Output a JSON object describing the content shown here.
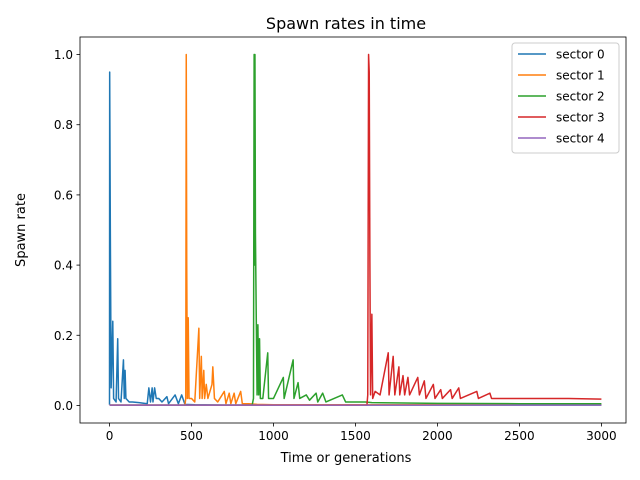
{
  "chart_data": {
    "type": "line",
    "title": "Spawn rates in time",
    "xlabel": "Time or generations",
    "ylabel": "Spawn rate",
    "xlim": [
      -180,
      3150
    ],
    "ylim": [
      -0.05,
      1.05
    ],
    "xticks": [
      0,
      500,
      1000,
      1500,
      2000,
      2500,
      3000
    ],
    "xtick_labels": [
      "0",
      "500",
      "1000",
      "1500",
      "2000",
      "2500",
      "3000"
    ],
    "yticks": [
      0.0,
      0.2,
      0.4,
      0.6,
      0.8,
      1.0
    ],
    "ytick_labels": [
      "0.0",
      "0.2",
      "0.4",
      "0.6",
      "0.8",
      "1.0"
    ],
    "grid": false,
    "legend_position": "top-right",
    "series": [
      {
        "name": "sector 0",
        "color": "#1f77b4",
        "points": [
          [
            0,
            0.002
          ],
          [
            1,
            0.95
          ],
          [
            5,
            0.5
          ],
          [
            10,
            0.05
          ],
          [
            20,
            0.24
          ],
          [
            25,
            0.02
          ],
          [
            40,
            0.01
          ],
          [
            50,
            0.19
          ],
          [
            55,
            0.02
          ],
          [
            70,
            0.01
          ],
          [
            85,
            0.13
          ],
          [
            90,
            0.02
          ],
          [
            95,
            0.1
          ],
          [
            100,
            0.02
          ],
          [
            120,
            0.01
          ],
          [
            140,
            0.01
          ],
          [
            180,
            0.008
          ],
          [
            230,
            0.005
          ],
          [
            240,
            0.05
          ],
          [
            250,
            0.01
          ],
          [
            260,
            0.05
          ],
          [
            265,
            0.01
          ],
          [
            275,
            0.05
          ],
          [
            285,
            0.02
          ],
          [
            300,
            0.02
          ],
          [
            320,
            0.01
          ],
          [
            350,
            0.025
          ],
          [
            360,
            0.005
          ],
          [
            400,
            0.03
          ],
          [
            420,
            0.005
          ],
          [
            440,
            0.03
          ],
          [
            460,
            0.003
          ],
          [
            520,
            0.002
          ],
          [
            700,
            0.001
          ],
          [
            1000,
            0.001
          ],
          [
            3000,
            0.001
          ]
        ]
      },
      {
        "name": "sector 1",
        "color": "#ff7f0e",
        "points": [
          [
            0,
            0.001
          ],
          [
            460,
            0.001
          ],
          [
            465,
            0.02
          ],
          [
            468,
            1.0
          ],
          [
            471,
            0.4
          ],
          [
            475,
            0.02
          ],
          [
            480,
            0.25
          ],
          [
            485,
            0.02
          ],
          [
            500,
            0.02
          ],
          [
            520,
            0.01
          ],
          [
            545,
            0.22
          ],
          [
            550,
            0.02
          ],
          [
            560,
            0.14
          ],
          [
            565,
            0.02
          ],
          [
            575,
            0.1
          ],
          [
            580,
            0.02
          ],
          [
            590,
            0.06
          ],
          [
            600,
            0.02
          ],
          [
            625,
            0.06
          ],
          [
            630,
            0.11
          ],
          [
            640,
            0.02
          ],
          [
            660,
            0.01
          ],
          [
            700,
            0.04
          ],
          [
            710,
            0.005
          ],
          [
            730,
            0.035
          ],
          [
            740,
            0.005
          ],
          [
            760,
            0.035
          ],
          [
            770,
            0.005
          ],
          [
            800,
            0.04
          ],
          [
            810,
            0.005
          ],
          [
            850,
            0.005
          ],
          [
            900,
            0.003
          ],
          [
            1000,
            0.002
          ],
          [
            3000,
            0.002
          ]
        ]
      },
      {
        "name": "sector 2",
        "color": "#2ca02c",
        "points": [
          [
            0,
            0.001
          ],
          [
            870,
            0.001
          ],
          [
            878,
            0.02
          ],
          [
            882,
            1.0
          ],
          [
            884,
            0.4
          ],
          [
            887,
            1.0
          ],
          [
            890,
            0.49
          ],
          [
            895,
            0.25
          ],
          [
            900,
            0.03
          ],
          [
            905,
            0.23
          ],
          [
            910,
            0.03
          ],
          [
            915,
            0.19
          ],
          [
            920,
            0.02
          ],
          [
            935,
            0.02
          ],
          [
            965,
            0.15
          ],
          [
            970,
            0.02
          ],
          [
            1000,
            0.02
          ],
          [
            1060,
            0.08
          ],
          [
            1065,
            0.02
          ],
          [
            1120,
            0.13
          ],
          [
            1125,
            0.02
          ],
          [
            1150,
            0.065
          ],
          [
            1160,
            0.02
          ],
          [
            1200,
            0.03
          ],
          [
            1220,
            0.015
          ],
          [
            1260,
            0.035
          ],
          [
            1270,
            0.01
          ],
          [
            1300,
            0.035
          ],
          [
            1320,
            0.01
          ],
          [
            1420,
            0.03
          ],
          [
            1440,
            0.01
          ],
          [
            1500,
            0.01
          ],
          [
            1560,
            0.01
          ],
          [
            1600,
            0.008
          ],
          [
            2000,
            0.006
          ],
          [
            2500,
            0.005
          ],
          [
            3000,
            0.005
          ]
        ]
      },
      {
        "name": "sector 3",
        "color": "#d62728",
        "points": [
          [
            0,
            0.001
          ],
          [
            1570,
            0.001
          ],
          [
            1575,
            0.03
          ],
          [
            1580,
            1.0
          ],
          [
            1584,
            0.95
          ],
          [
            1588,
            0.41
          ],
          [
            1592,
            0.03
          ],
          [
            1600,
            0.26
          ],
          [
            1605,
            0.02
          ],
          [
            1620,
            0.04
          ],
          [
            1650,
            0.03
          ],
          [
            1700,
            0.15
          ],
          [
            1705,
            0.03
          ],
          [
            1730,
            0.14
          ],
          [
            1740,
            0.03
          ],
          [
            1765,
            0.11
          ],
          [
            1770,
            0.03
          ],
          [
            1790,
            0.085
          ],
          [
            1800,
            0.03
          ],
          [
            1820,
            0.08
          ],
          [
            1830,
            0.03
          ],
          [
            1880,
            0.08
          ],
          [
            1890,
            0.03
          ],
          [
            1920,
            0.07
          ],
          [
            1930,
            0.02
          ],
          [
            1975,
            0.06
          ],
          [
            1985,
            0.02
          ],
          [
            2020,
            0.045
          ],
          [
            2030,
            0.02
          ],
          [
            2080,
            0.045
          ],
          [
            2090,
            0.02
          ],
          [
            2130,
            0.05
          ],
          [
            2140,
            0.02
          ],
          [
            2240,
            0.04
          ],
          [
            2250,
            0.02
          ],
          [
            2320,
            0.035
          ],
          [
            2330,
            0.02
          ],
          [
            2500,
            0.02
          ],
          [
            2800,
            0.02
          ],
          [
            3000,
            0.018
          ]
        ]
      },
      {
        "name": "sector 4",
        "color": "#9467bd",
        "points": [
          [
            0,
            0.001
          ],
          [
            3000,
            0.001
          ]
        ]
      }
    ]
  }
}
